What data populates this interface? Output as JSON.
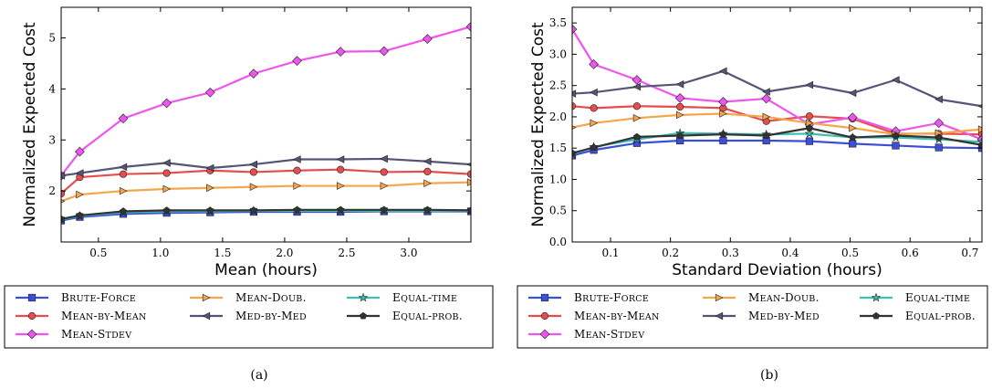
{
  "legend_labels": [
    "Brute-Force",
    "Mean-Doub.",
    "Equal-time",
    "Mean-by-Mean",
    "Med-by-Med",
    "Equal-prob.",
    "Mean-Stdev"
  ],
  "series_styles": {
    "Brute-Force": {
      "color": "#3b4fd8",
      "marker": "square"
    },
    "Mean-by-Mean": {
      "color": "#e64d4d",
      "marker": "circle"
    },
    "Mean-Stdev": {
      "color": "#ee55ee",
      "marker": "diamond"
    },
    "Mean-Doub.": {
      "color": "#f5a64a",
      "marker": "triangle-right"
    },
    "Med-by-Med": {
      "color": "#555577",
      "marker": "triangle-left"
    },
    "Equal-time": {
      "color": "#3cc0b0",
      "marker": "star"
    },
    "Equal-prob.": {
      "color": "#333333",
      "marker": "pentagon"
    }
  },
  "chart_data": [
    {
      "type": "line",
      "caption": "(a)",
      "xlabel": "Mean (hours)",
      "ylabel": "Normalized Expected Cost",
      "xlim": [
        0.2,
        3.5
      ],
      "ylim": [
        1.0,
        5.6
      ],
      "xticks": [
        0.5,
        1.0,
        1.5,
        2.0,
        2.5,
        3.0
      ],
      "yticks": [
        2,
        3,
        4,
        5
      ],
      "grid": false,
      "legend_placement": "below",
      "x": [
        0.2,
        0.35,
        0.7,
        1.05,
        1.4,
        1.75,
        2.1,
        2.45,
        2.8,
        3.15,
        3.5
      ],
      "series": [
        {
          "name": "Brute-Force",
          "values": [
            1.42,
            1.49,
            1.55,
            1.57,
            1.58,
            1.59,
            1.59,
            1.59,
            1.6,
            1.6,
            1.6
          ]
        },
        {
          "name": "Mean-by-Mean",
          "values": [
            1.95,
            2.27,
            2.33,
            2.35,
            2.4,
            2.37,
            2.4,
            2.42,
            2.37,
            2.38,
            2.33
          ]
        },
        {
          "name": "Mean-Stdev",
          "values": [
            2.3,
            2.77,
            3.42,
            3.72,
            3.93,
            4.3,
            4.55,
            4.73,
            4.74,
            4.98,
            5.22
          ]
        },
        {
          "name": "Mean-Doub.",
          "values": [
            1.8,
            1.93,
            2.0,
            2.04,
            2.06,
            2.08,
            2.1,
            2.1,
            2.1,
            2.15,
            2.17
          ]
        },
        {
          "name": "Med-by-Med",
          "values": [
            2.3,
            2.35,
            2.47,
            2.55,
            2.45,
            2.52,
            2.62,
            2.62,
            2.63,
            2.58,
            2.52
          ]
        },
        {
          "name": "Equal-time",
          "values": [
            1.44,
            1.51,
            1.58,
            1.6,
            1.6,
            1.61,
            1.61,
            1.61,
            1.61,
            1.61,
            1.61
          ]
        },
        {
          "name": "Equal-prob.",
          "values": [
            1.45,
            1.52,
            1.6,
            1.62,
            1.62,
            1.62,
            1.63,
            1.63,
            1.63,
            1.63,
            1.62
          ]
        }
      ]
    },
    {
      "type": "line",
      "caption": "(b)",
      "xlabel": "Standard Deviation (hours)",
      "ylabel": "Normalized Expected Cost",
      "xlim": [
        0.036,
        0.72
      ],
      "ylim": [
        0.0,
        3.75
      ],
      "xticks": [
        0.1,
        0.2,
        0.3,
        0.4,
        0.5,
        0.6,
        0.7
      ],
      "yticks": [
        0.0,
        0.5,
        1.0,
        1.5,
        2.0,
        2.5,
        3.0,
        3.5
      ],
      "grid": false,
      "legend_placement": "below",
      "x": [
        0.036,
        0.072,
        0.144,
        0.216,
        0.288,
        0.36,
        0.432,
        0.504,
        0.576,
        0.648,
        0.72
      ],
      "series": [
        {
          "name": "Brute-Force",
          "values": [
            1.38,
            1.47,
            1.58,
            1.62,
            1.62,
            1.62,
            1.61,
            1.57,
            1.54,
            1.51,
            1.5
          ]
        },
        {
          "name": "Mean-by-Mean",
          "values": [
            2.17,
            2.14,
            2.17,
            2.16,
            2.14,
            1.93,
            2.01,
            1.97,
            1.73,
            1.73,
            1.72
          ]
        },
        {
          "name": "Mean-Stdev",
          "values": [
            3.4,
            2.84,
            2.59,
            2.3,
            2.24,
            2.29,
            1.88,
            1.99,
            1.77,
            1.9,
            1.64
          ]
        },
        {
          "name": "Mean-Doub.",
          "values": [
            1.83,
            1.9,
            1.98,
            2.03,
            2.05,
            2.0,
            1.9,
            1.82,
            1.72,
            1.74,
            1.8
          ]
        },
        {
          "name": "Med-by-Med",
          "values": [
            2.37,
            2.39,
            2.48,
            2.52,
            2.73,
            2.4,
            2.51,
            2.38,
            2.59,
            2.28,
            2.17
          ]
        },
        {
          "name": "Equal-time",
          "values": [
            1.4,
            1.52,
            1.64,
            1.74,
            1.73,
            1.72,
            1.73,
            1.67,
            1.67,
            1.64,
            1.6
          ]
        },
        {
          "name": "Equal-prob.",
          "values": [
            1.42,
            1.51,
            1.68,
            1.7,
            1.72,
            1.7,
            1.82,
            1.67,
            1.7,
            1.67,
            1.55
          ]
        }
      ]
    }
  ]
}
